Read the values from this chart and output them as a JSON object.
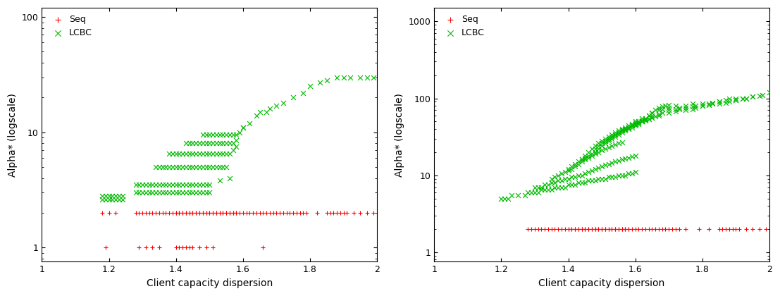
{
  "left": {
    "ylim": [
      0.75,
      120
    ],
    "yticks": [
      1,
      10,
      100
    ],
    "seq_x": [
      1.18,
      1.2,
      1.22,
      1.28,
      1.29,
      1.3,
      1.31,
      1.32,
      1.33,
      1.34,
      1.35,
      1.36,
      1.37,
      1.38,
      1.39,
      1.4,
      1.4,
      1.41,
      1.41,
      1.42,
      1.42,
      1.43,
      1.43,
      1.44,
      1.44,
      1.45,
      1.45,
      1.46,
      1.46,
      1.47,
      1.47,
      1.48,
      1.48,
      1.49,
      1.49,
      1.5,
      1.5,
      1.51,
      1.51,
      1.52,
      1.52,
      1.53,
      1.53,
      1.54,
      1.54,
      1.55,
      1.55,
      1.56,
      1.56,
      1.57,
      1.57,
      1.58,
      1.58,
      1.59,
      1.6,
      1.61,
      1.62,
      1.63,
      1.64,
      1.65,
      1.66,
      1.67,
      1.68,
      1.69,
      1.7,
      1.71,
      1.72,
      1.73,
      1.74,
      1.75,
      1.76,
      1.77,
      1.78,
      1.79,
      1.82,
      1.85,
      1.86,
      1.87,
      1.88,
      1.89,
      1.9,
      1.91,
      1.93,
      1.95,
      1.97,
      1.99
    ],
    "seq_y": [
      2.0,
      2.0,
      2.0,
      2.0,
      2.0,
      2.0,
      2.0,
      2.0,
      2.0,
      2.0,
      2.0,
      2.0,
      2.0,
      2.0,
      2.0,
      2.0,
      2.0,
      2.0,
      2.0,
      2.0,
      2.0,
      2.0,
      2.0,
      2.0,
      2.0,
      2.0,
      2.0,
      2.0,
      2.0,
      2.0,
      2.0,
      2.0,
      2.0,
      2.0,
      2.0,
      2.0,
      2.0,
      2.0,
      2.0,
      2.0,
      2.0,
      2.0,
      2.0,
      2.0,
      2.0,
      2.0,
      2.0,
      2.0,
      2.0,
      2.0,
      2.0,
      2.0,
      2.0,
      2.0,
      2.0,
      2.0,
      2.0,
      2.0,
      2.0,
      2.0,
      2.0,
      2.0,
      2.0,
      2.0,
      2.0,
      2.0,
      2.0,
      2.0,
      2.0,
      2.0,
      2.0,
      2.0,
      2.0,
      2.0,
      2.0,
      2.0,
      2.0,
      2.0,
      2.0,
      2.0,
      2.0,
      2.0,
      2.0,
      2.0,
      2.0,
      2.0
    ],
    "seq_x_low": [
      1.19,
      1.29,
      1.31,
      1.33,
      1.35,
      1.4,
      1.41,
      1.42,
      1.43,
      1.44,
      1.45,
      1.47,
      1.49,
      1.51,
      1.66
    ],
    "seq_y_low": [
      1.0,
      1.0,
      1.0,
      1.0,
      1.0,
      1.0,
      1.0,
      1.0,
      1.0,
      1.0,
      1.0,
      1.0,
      1.0,
      1.0,
      1.0
    ],
    "lcbc_x": [
      1.18,
      1.19,
      1.2,
      1.21,
      1.22,
      1.23,
      1.24,
      1.18,
      1.19,
      1.2,
      1.21,
      1.22,
      1.23,
      1.24,
      1.28,
      1.29,
      1.3,
      1.31,
      1.32,
      1.33,
      1.34,
      1.35,
      1.36,
      1.37,
      1.38,
      1.39,
      1.4,
      1.41,
      1.42,
      1.43,
      1.44,
      1.45,
      1.46,
      1.47,
      1.48,
      1.49,
      1.5,
      1.28,
      1.29,
      1.3,
      1.31,
      1.32,
      1.33,
      1.34,
      1.35,
      1.36,
      1.37,
      1.38,
      1.39,
      1.4,
      1.41,
      1.42,
      1.43,
      1.44,
      1.45,
      1.46,
      1.47,
      1.48,
      1.49,
      1.5,
      1.53,
      1.56,
      1.34,
      1.35,
      1.36,
      1.37,
      1.38,
      1.39,
      1.4,
      1.41,
      1.42,
      1.43,
      1.44,
      1.45,
      1.46,
      1.47,
      1.48,
      1.49,
      1.5,
      1.51,
      1.52,
      1.53,
      1.54,
      1.55,
      1.38,
      1.39,
      1.4,
      1.41,
      1.42,
      1.43,
      1.44,
      1.45,
      1.46,
      1.47,
      1.48,
      1.49,
      1.5,
      1.51,
      1.52,
      1.53,
      1.54,
      1.55,
      1.56,
      1.57,
      1.58,
      1.43,
      1.44,
      1.45,
      1.46,
      1.47,
      1.48,
      1.49,
      1.5,
      1.51,
      1.52,
      1.53,
      1.54,
      1.55,
      1.56,
      1.57,
      1.58,
      1.48,
      1.49,
      1.5,
      1.51,
      1.52,
      1.53,
      1.54,
      1.55,
      1.56,
      1.57,
      1.58,
      1.59,
      1.6,
      1.6,
      1.62,
      1.64,
      1.65,
      1.67,
      1.68,
      1.7,
      1.72,
      1.75,
      1.78,
      1.8,
      1.83,
      1.85,
      1.88,
      1.9,
      1.92,
      1.95,
      1.97,
      1.99
    ],
    "lcbc_y": [
      2.6,
      2.6,
      2.6,
      2.6,
      2.6,
      2.6,
      2.6,
      2.8,
      2.8,
      2.8,
      2.8,
      2.8,
      2.8,
      2.8,
      3.0,
      3.0,
      3.0,
      3.0,
      3.0,
      3.0,
      3.0,
      3.0,
      3.0,
      3.0,
      3.0,
      3.0,
      3.0,
      3.0,
      3.0,
      3.0,
      3.0,
      3.0,
      3.0,
      3.0,
      3.0,
      3.0,
      3.0,
      3.5,
      3.5,
      3.5,
      3.5,
      3.5,
      3.5,
      3.5,
      3.5,
      3.5,
      3.5,
      3.5,
      3.5,
      3.5,
      3.5,
      3.5,
      3.5,
      3.5,
      3.5,
      3.5,
      3.5,
      3.5,
      3.5,
      3.5,
      3.8,
      4.0,
      5.0,
      5.0,
      5.0,
      5.0,
      5.0,
      5.0,
      5.0,
      5.0,
      5.0,
      5.0,
      5.0,
      5.0,
      5.0,
      5.0,
      5.0,
      5.0,
      5.0,
      5.0,
      5.0,
      5.0,
      5.0,
      5.0,
      6.5,
      6.5,
      6.5,
      6.5,
      6.5,
      6.5,
      6.5,
      6.5,
      6.5,
      6.5,
      6.5,
      6.5,
      6.5,
      6.5,
      6.5,
      6.5,
      6.5,
      6.5,
      6.5,
      7.0,
      7.5,
      8.0,
      8.0,
      8.0,
      8.0,
      8.0,
      8.0,
      8.0,
      8.0,
      8.0,
      8.0,
      8.0,
      8.0,
      8.0,
      8.0,
      8.0,
      8.5,
      9.5,
      9.5,
      9.5,
      9.5,
      9.5,
      9.5,
      9.5,
      9.5,
      9.5,
      9.5,
      9.5,
      10.0,
      11.0,
      11.0,
      12.0,
      14.0,
      15.0,
      15.0,
      16.0,
      17.0,
      18.0,
      20.0,
      22.0,
      25.0,
      27.0,
      28.0,
      30.0,
      30.0,
      30.0,
      30.0,
      30.0,
      30.0
    ]
  },
  "right": {
    "ylim": [
      0.75,
      1500
    ],
    "yticks": [
      1,
      10,
      100,
      1000
    ],
    "seq_x": [
      1.28,
      1.29,
      1.3,
      1.31,
      1.32,
      1.33,
      1.34,
      1.35,
      1.36,
      1.37,
      1.38,
      1.39,
      1.4,
      1.4,
      1.41,
      1.41,
      1.42,
      1.42,
      1.43,
      1.43,
      1.44,
      1.44,
      1.45,
      1.45,
      1.46,
      1.46,
      1.47,
      1.47,
      1.48,
      1.48,
      1.49,
      1.49,
      1.5,
      1.5,
      1.51,
      1.51,
      1.52,
      1.52,
      1.53,
      1.53,
      1.54,
      1.54,
      1.55,
      1.55,
      1.56,
      1.56,
      1.57,
      1.57,
      1.58,
      1.58,
      1.59,
      1.6,
      1.61,
      1.62,
      1.63,
      1.64,
      1.65,
      1.66,
      1.67,
      1.68,
      1.69,
      1.7,
      1.71,
      1.72,
      1.73,
      1.75,
      1.79,
      1.82,
      1.85,
      1.86,
      1.87,
      1.88,
      1.89,
      1.9,
      1.91,
      1.93,
      1.95,
      1.97,
      1.99
    ],
    "seq_y": [
      2.0,
      2.0,
      2.0,
      2.0,
      2.0,
      2.0,
      2.0,
      2.0,
      2.0,
      2.0,
      2.0,
      2.0,
      2.0,
      2.0,
      2.0,
      2.0,
      2.0,
      2.0,
      2.0,
      2.0,
      2.0,
      2.0,
      2.0,
      2.0,
      2.0,
      2.0,
      2.0,
      2.0,
      2.0,
      2.0,
      2.0,
      2.0,
      2.0,
      2.0,
      2.0,
      2.0,
      2.0,
      2.0,
      2.0,
      2.0,
      2.0,
      2.0,
      2.0,
      2.0,
      2.0,
      2.0,
      2.0,
      2.0,
      2.0,
      2.0,
      2.0,
      2.0,
      2.0,
      2.0,
      2.0,
      2.0,
      2.0,
      2.0,
      2.0,
      2.0,
      2.0,
      2.0,
      2.0,
      2.0,
      2.0,
      2.0,
      2.0,
      2.0,
      2.0,
      2.0,
      2.0,
      2.0,
      2.0,
      2.0,
      2.0,
      2.0,
      2.0,
      2.0,
      2.0
    ],
    "lcbc_x": [
      1.2,
      1.21,
      1.22,
      1.23,
      1.25,
      1.27,
      1.28,
      1.29,
      1.3,
      1.31,
      1.32,
      1.33,
      1.34,
      1.35,
      1.36,
      1.37,
      1.38,
      1.39,
      1.4,
      1.41,
      1.42,
      1.43,
      1.44,
      1.45,
      1.46,
      1.47,
      1.48,
      1.49,
      1.5,
      1.51,
      1.52,
      1.53,
      1.54,
      1.55,
      1.56,
      1.57,
      1.58,
      1.59,
      1.6,
      1.3,
      1.31,
      1.32,
      1.33,
      1.34,
      1.35,
      1.36,
      1.37,
      1.38,
      1.39,
      1.4,
      1.41,
      1.42,
      1.43,
      1.44,
      1.45,
      1.46,
      1.47,
      1.48,
      1.49,
      1.5,
      1.51,
      1.52,
      1.53,
      1.54,
      1.55,
      1.56,
      1.57,
      1.58,
      1.59,
      1.6,
      1.35,
      1.36,
      1.37,
      1.38,
      1.39,
      1.4,
      1.41,
      1.42,
      1.43,
      1.44,
      1.45,
      1.46,
      1.47,
      1.48,
      1.49,
      1.5,
      1.51,
      1.52,
      1.53,
      1.54,
      1.55,
      1.56,
      1.4,
      1.41,
      1.42,
      1.43,
      1.44,
      1.45,
      1.46,
      1.47,
      1.48,
      1.49,
      1.5,
      1.51,
      1.52,
      1.53,
      1.54,
      1.55,
      1.56,
      1.57,
      1.58,
      1.59,
      1.6,
      1.61,
      1.44,
      1.45,
      1.46,
      1.47,
      1.48,
      1.49,
      1.5,
      1.51,
      1.52,
      1.53,
      1.54,
      1.55,
      1.56,
      1.57,
      1.58,
      1.59,
      1.6,
      1.61,
      1.62,
      1.63,
      1.48,
      1.49,
      1.5,
      1.51,
      1.52,
      1.53,
      1.54,
      1.55,
      1.56,
      1.57,
      1.58,
      1.59,
      1.6,
      1.61,
      1.62,
      1.63,
      1.64,
      1.65,
      1.52,
      1.53,
      1.54,
      1.55,
      1.56,
      1.57,
      1.58,
      1.59,
      1.6,
      1.61,
      1.62,
      1.63,
      1.64,
      1.65,
      1.66,
      1.67,
      1.56,
      1.57,
      1.58,
      1.59,
      1.6,
      1.61,
      1.62,
      1.63,
      1.64,
      1.65,
      1.66,
      1.67,
      1.68,
      1.69,
      1.7,
      1.6,
      1.62,
      1.64,
      1.65,
      1.67,
      1.68,
      1.7,
      1.72,
      1.65,
      1.67,
      1.68,
      1.7,
      1.72,
      1.73,
      1.75,
      1.77,
      1.7,
      1.72,
      1.73,
      1.75,
      1.77,
      1.78,
      1.8,
      1.75,
      1.77,
      1.78,
      1.8,
      1.82,
      1.83,
      1.85,
      1.8,
      1.82,
      1.83,
      1.85,
      1.87,
      1.88,
      1.9,
      1.85,
      1.87,
      1.88,
      1.9,
      1.92,
      1.93,
      1.95,
      1.9,
      1.92,
      1.93,
      1.95,
      1.97,
      1.98,
      2.0
    ],
    "lcbc_y": [
      5.0,
      5.0,
      5.0,
      5.5,
      5.5,
      5.5,
      6.0,
      6.0,
      6.0,
      6.0,
      6.5,
      6.5,
      6.5,
      6.5,
      7.0,
      7.0,
      7.0,
      7.0,
      7.5,
      7.5,
      7.5,
      8.0,
      8.0,
      8.0,
      8.5,
      8.5,
      8.5,
      9.0,
      9.0,
      9.0,
      9.5,
      9.5,
      9.5,
      10.0,
      10.0,
      10.0,
      10.5,
      10.5,
      11.0,
      7.0,
      7.0,
      7.0,
      7.5,
      7.5,
      8.0,
      8.0,
      8.5,
      8.5,
      9.0,
      9.0,
      9.5,
      9.5,
      10.0,
      10.0,
      10.5,
      11.0,
      11.5,
      12.0,
      12.5,
      13.0,
      13.5,
      14.0,
      14.5,
      15.0,
      15.5,
      16.0,
      16.5,
      17.0,
      17.5,
      18.0,
      9.0,
      9.5,
      10.0,
      10.5,
      11.0,
      11.5,
      12.0,
      13.0,
      14.0,
      15.0,
      16.0,
      17.0,
      18.0,
      19.0,
      20.0,
      21.0,
      22.0,
      23.0,
      24.0,
      25.0,
      26.0,
      27.0,
      12.0,
      13.0,
      14.0,
      15.0,
      16.0,
      17.0,
      18.0,
      19.0,
      20.0,
      22.0,
      24.0,
      26.0,
      28.0,
      30.0,
      32.0,
      34.0,
      36.0,
      38.0,
      40.0,
      42.0,
      44.0,
      46.0,
      16.0,
      18.0,
      20.0,
      22.0,
      24.0,
      26.0,
      28.0,
      30.0,
      32.0,
      34.0,
      36.0,
      38.0,
      40.0,
      42.0,
      44.0,
      46.0,
      48.0,
      50.0,
      52.0,
      54.0,
      22.0,
      24.0,
      26.0,
      28.0,
      30.0,
      32.0,
      34.0,
      36.0,
      38.0,
      40.0,
      42.0,
      44.0,
      46.0,
      48.0,
      50.0,
      52.0,
      54.0,
      56.0,
      30.0,
      32.0,
      34.0,
      36.0,
      38.0,
      40.0,
      42.0,
      44.0,
      46.0,
      48.0,
      50.0,
      52.0,
      54.0,
      56.0,
      58.0,
      60.0,
      38.0,
      40.0,
      42.0,
      44.0,
      46.0,
      48.0,
      50.0,
      55.0,
      60.0,
      65.0,
      70.0,
      75.0,
      78.0,
      80.0,
      82.0,
      50.0,
      55.0,
      60.0,
      65.0,
      70.0,
      72.0,
      75.0,
      80.0,
      60.0,
      62.0,
      65.0,
      70.0,
      72.0,
      75.0,
      80.0,
      85.0,
      65.0,
      68.0,
      72.0,
      75.0,
      78.0,
      80.0,
      85.0,
      70.0,
      72.0,
      75.0,
      80.0,
      85.0,
      88.0,
      90.0,
      80.0,
      82.0,
      85.0,
      90.0,
      95.0,
      98.0,
      100.0,
      85.0,
      88.0,
      90.0,
      95.0,
      98.0,
      100.0,
      105.0,
      95.0,
      98.0,
      100.0,
      105.0,
      108.0,
      110.0,
      120.0
    ]
  },
  "seq_color": "#ff0000",
  "lcbc_color": "#00bb00",
  "bg_color": "#ffffff",
  "xlabel": "Client capacity dispersion",
  "ylabel": "Alpha* (logscale)",
  "xlim": [
    1.0,
    2.0
  ],
  "xticks": [
    1.0,
    1.2,
    1.4,
    1.6,
    1.8,
    2.0
  ],
  "xtick_labels": [
    "1",
    "1.2",
    "1.4",
    "1.6",
    "1.8",
    "2"
  ],
  "marker_seq": "+",
  "marker_lcbc": "x",
  "ms_seq": 5,
  "ms_lcbc": 5
}
